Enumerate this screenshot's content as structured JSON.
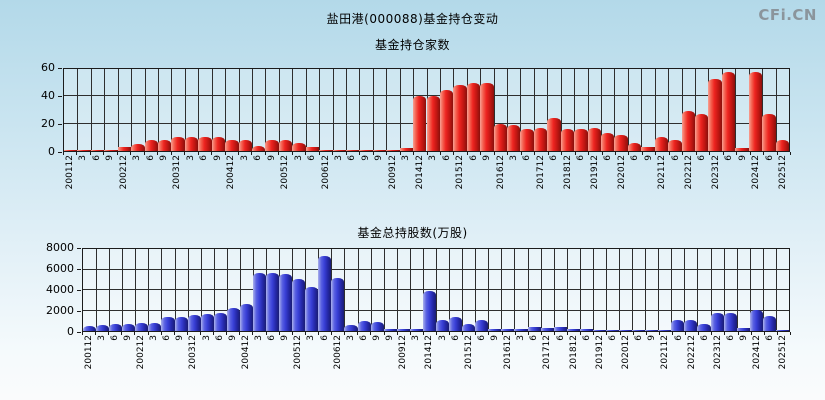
{
  "page": {
    "title": "盐田港(000088)基金持仓变动",
    "logo": "CFi.CN"
  },
  "colors": {
    "background_top": "#b3d9e9",
    "background_bottom": "#fafbfc",
    "grid": "#2e2e2e",
    "bar_red": "#ee2420",
    "bar_blue": "#3a41d8",
    "logo_gray": "#8b959c"
  },
  "chart_data": [
    {
      "type": "bar",
      "title": "基金持仓家数",
      "palette": "red",
      "grid": true,
      "ylim": [
        0,
        60
      ],
      "yticks": [
        0,
        20,
        40,
        60
      ],
      "categories": [
        "200112",
        "3",
        "6",
        "9",
        "200212",
        "3",
        "6",
        "9",
        "200312",
        "3",
        "6",
        "9",
        "200412",
        "3",
        "6",
        "9",
        "200512",
        "3",
        "6",
        "200612",
        "3",
        "6",
        "9",
        "9",
        "200912",
        "3",
        "201412",
        "3",
        "6",
        "201512",
        "6",
        "9",
        "201612",
        "3",
        "6",
        "201712",
        "6",
        "201812",
        "6",
        "201912",
        "6",
        "202012",
        "6",
        "9",
        "202112",
        "6",
        "202212",
        "6",
        "202312",
        "6",
        "9",
        "202412",
        "6",
        "202512"
      ],
      "values": [
        1,
        1,
        1,
        1,
        3,
        5,
        8,
        8,
        10,
        10,
        10,
        10,
        8,
        8,
        4,
        8,
        8,
        6,
        3,
        1,
        1,
        1,
        1,
        1,
        1,
        2,
        40,
        40,
        45,
        48,
        50,
        50,
        20,
        19,
        16,
        17,
        24,
        16,
        16,
        17,
        13,
        12,
        6,
        3,
        10,
        8,
        29,
        27,
        53,
        58,
        2,
        58,
        27,
        8
      ]
    },
    {
      "type": "bar",
      "title": "基金总持股数(万股)",
      "palette": "blue",
      "grid": true,
      "ylim": [
        0,
        8000
      ],
      "yticks": [
        0,
        2000,
        4000,
        6000,
        8000
      ],
      "categories": [
        "200112",
        "3",
        "6",
        "9",
        "200212",
        "3",
        "6",
        "9",
        "200312",
        "3",
        "6",
        "9",
        "200412",
        "3",
        "6",
        "9",
        "200512",
        "3",
        "6",
        "200612",
        "3",
        "6",
        "9",
        "9",
        "200912",
        "3",
        "201412",
        "3",
        "6",
        "201512",
        "6",
        "9",
        "201612",
        "3",
        "6",
        "201712",
        "6",
        "201812",
        "6",
        "201912",
        "6",
        "202012",
        "6",
        "9",
        "202112",
        "6",
        "202212",
        "6",
        "202312",
        "6",
        "9",
        "202412",
        "6",
        "202512"
      ],
      "values": [
        500,
        600,
        700,
        650,
        750,
        800,
        1350,
        1400,
        1600,
        1650,
        1750,
        2200,
        2600,
        5650,
        5650,
        5600,
        5100,
        4300,
        7350,
        5200,
        600,
        950,
        860,
        150,
        150,
        150,
        3900,
        1100,
        1400,
        700,
        1100,
        200,
        200,
        150,
        350,
        300,
        400,
        200,
        200,
        100,
        100,
        100,
        100,
        100,
        100,
        1100,
        1100,
        700,
        1750,
        1750,
        300,
        2050,
        1500,
        100
      ]
    }
  ]
}
